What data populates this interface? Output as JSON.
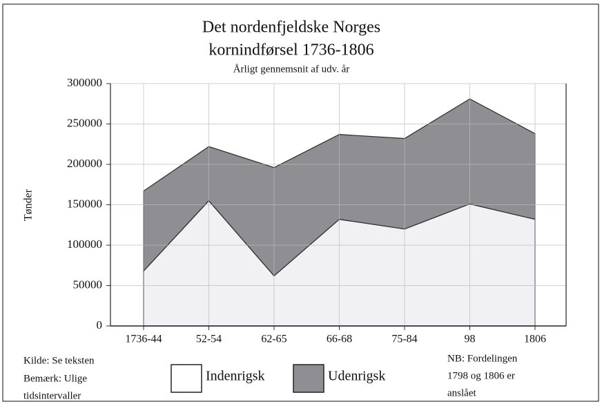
{
  "chart_data": {
    "type": "stacked_area",
    "title_lines": [
      "Det nordenfjeldske Norges",
      "kornindførsel 1736-1806"
    ],
    "subtitle": "Årligt gennemsnit af udv. år",
    "y_label": "Tønder",
    "categories": [
      "1736-44",
      "52-54",
      "62-65",
      "66-68",
      "75-84",
      "98",
      "1806"
    ],
    "series": [
      {
        "name": "Indenrigsk",
        "color": "#f1f1f3",
        "values": [
          68000,
          155000,
          62000,
          132000,
          120000,
          151000,
          132000
        ]
      },
      {
        "name": "Udenrigsk",
        "color": "#8f8f93",
        "values": [
          99000,
          67000,
          134000,
          105000,
          112000,
          130000,
          106000
        ]
      }
    ],
    "ylim": [
      0,
      300000
    ],
    "yticks": [
      0,
      50000,
      100000,
      150000,
      200000,
      250000,
      300000
    ],
    "grid": true,
    "source_lines": [
      "Kilde: Se teksten",
      "Bemærk: Ulige",
      "tidsintervaller"
    ],
    "note_lines": [
      "NB: Fordelingen",
      "1798 og 1806 er",
      "anslået"
    ]
  }
}
